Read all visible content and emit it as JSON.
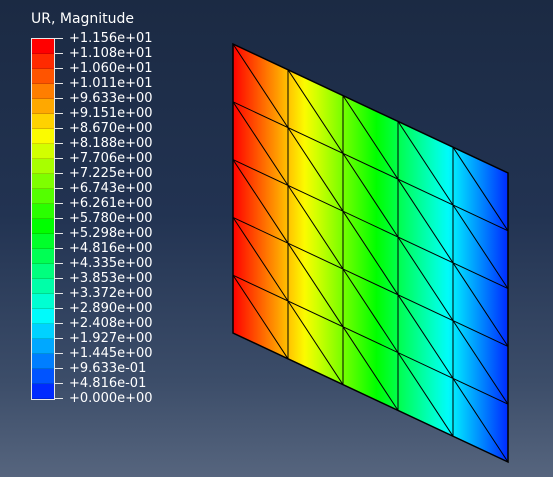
{
  "legend": {
    "title": "UR, Magnitude",
    "ticks": [
      "+1.156e+01",
      "+1.108e+01",
      "+1.060e+01",
      "+1.011e+01",
      "+9.633e+00",
      "+9.151e+00",
      "+8.670e+00",
      "+8.188e+00",
      "+7.706e+00",
      "+7.225e+00",
      "+6.743e+00",
      "+6.261e+00",
      "+5.780e+00",
      "+5.298e+00",
      "+4.816e+00",
      "+4.335e+00",
      "+3.853e+00",
      "+3.372e+00",
      "+2.890e+00",
      "+2.408e+00",
      "+1.927e+00",
      "+1.445e+00",
      "+9.633e-01",
      "+4.816e-01",
      "+0.000e+00"
    ],
    "colors": [
      "#ff0000",
      "#ff2a00",
      "#ff5400",
      "#ff7e00",
      "#ffa800",
      "#ffd200",
      "#fbfb00",
      "#d2ff00",
      "#a8ff00",
      "#7eff00",
      "#54ff00",
      "#2aff00",
      "#00ff00",
      "#00ff2a",
      "#00ff54",
      "#00ff7e",
      "#00ffa8",
      "#00ffd2",
      "#00fbfb",
      "#00d2ff",
      "#00a8ff",
      "#007eff",
      "#0054ff",
      "#002aff"
    ]
  },
  "model": {
    "mesh_columns": 5,
    "mesh_rows": 5,
    "element_type": "triangular"
  }
}
